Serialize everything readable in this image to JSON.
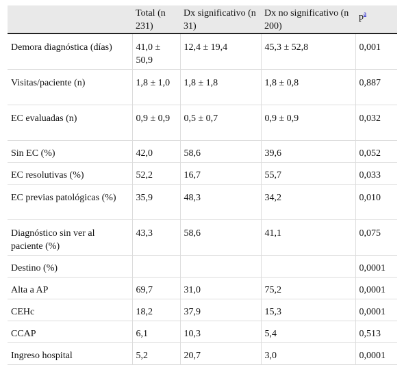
{
  "table": {
    "headers": [
      "",
      "Total (n 231)",
      "Dx significativo (n 31)",
      "Dx no significativo (n 200)",
      "p"
    ],
    "p_footnote_marker": "a",
    "rows": [
      [
        "Demora diagnóstica (días)",
        "41,0 ± 50,9",
        "12,4 ± 19,4",
        "45,3 ± 52,8",
        "0,001"
      ],
      [
        "Visitas/paciente (n)",
        "1,8 ± 1,0",
        "1,8 ± 1,8",
        "1,8 ± 0,8",
        "0,887"
      ],
      [
        "EC evaluadas (n)",
        "0,9 ± 0,9",
        "0,5 ± 0,7",
        "0,9 ± 0,9",
        "0,032"
      ],
      [
        "Sin EC (%)",
        "42,0",
        "58,6",
        "39,6",
        "0,052"
      ],
      [
        "EC resolutivas (%)",
        "52,2",
        "16,7",
        "55,7",
        "0,033"
      ],
      [
        "EC previas patológicas (%)",
        "35,9",
        "48,3",
        "34,2",
        "0,010"
      ],
      [
        "Diagnóstico sin ver al paciente (%)",
        "43,3",
        "58,6",
        "41,1",
        "0,075"
      ],
      [
        "Destino (%)",
        "",
        "",
        "",
        "0,0001"
      ],
      [
        "Alta a AP",
        "69,7",
        "31,0",
        "75,2",
        "0,0001"
      ],
      [
        "CEHc",
        "18,2",
        "37,9",
        "15,3",
        "0,0001"
      ],
      [
        "CCAP",
        "6,1",
        "10,3",
        "5,4",
        "0,513"
      ],
      [
        "Ingreso hospital",
        "5,2",
        "20,7",
        "3,0",
        "0,0001"
      ]
    ]
  }
}
